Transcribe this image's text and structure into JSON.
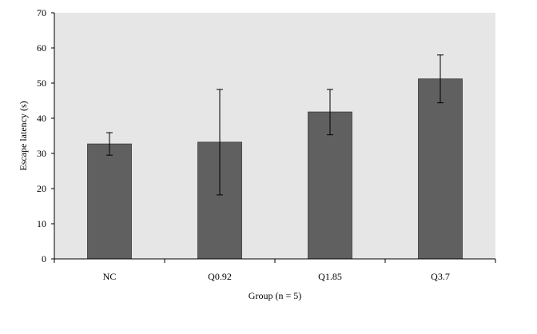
{
  "chart_data": {
    "type": "bar",
    "title": "",
    "xlabel": "Group (n = 5)",
    "ylabel": "Escape latency (s)",
    "categories": [
      "NC",
      "Q0.92",
      "Q1.85",
      "Q3.7"
    ],
    "values": [
      32.7,
      33.2,
      41.8,
      51.2
    ],
    "error_low": [
      29.5,
      18.2,
      35.3,
      44.4
    ],
    "error_high": [
      35.9,
      48.2,
      48.2,
      58.0
    ],
    "ylim": [
      0,
      70
    ],
    "yticks": [
      0,
      10,
      20,
      30,
      40,
      50,
      60,
      70
    ],
    "grid": false,
    "legend": "none",
    "colors": {
      "plot_background": "#e6e6e6",
      "bar": "#606060",
      "bar_edge": "#3a3a3a",
      "axis": "#000000",
      "error_bar": "#000000"
    }
  }
}
